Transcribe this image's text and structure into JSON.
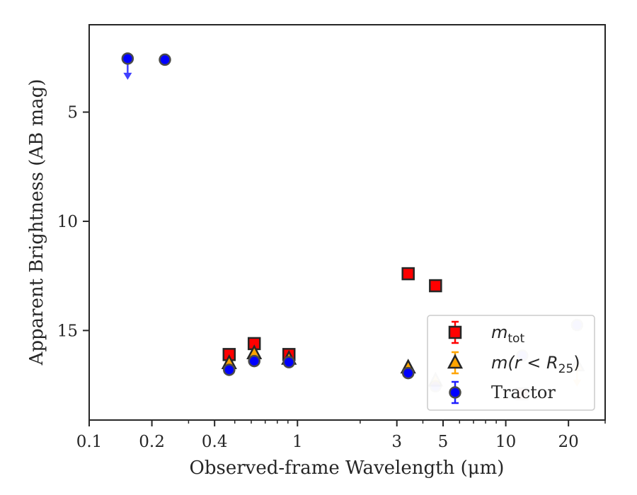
{
  "chart_data": {
    "type": "scatter",
    "title": "",
    "xlabel": "Observed-frame Wavelength (μm)",
    "ylabel": "Apparent Brightness (AB mag)",
    "x_scale": "log",
    "y_inverted": true,
    "xlim": [
      0.1,
      30
    ],
    "ylim": [
      19.1,
      1.0
    ],
    "x_ticks": [
      {
        "value": 0.1,
        "label": "0.1"
      },
      {
        "value": 0.2,
        "label": "0.2"
      },
      {
        "value": 0.4,
        "label": "0.4"
      },
      {
        "value": 1,
        "label": "1"
      },
      {
        "value": 3,
        "label": "3"
      },
      {
        "value": 5,
        "label": "5"
      },
      {
        "value": 10,
        "label": "10"
      },
      {
        "value": 20,
        "label": "20"
      }
    ],
    "y_ticks": [
      {
        "value": 5,
        "label": "5"
      },
      {
        "value": 10,
        "label": "10"
      },
      {
        "value": 15,
        "label": "15"
      }
    ],
    "grid": false,
    "legend_position": "lower-right",
    "series": [
      {
        "name": "m_tot",
        "legend_main": "m",
        "legend_sub": "tot",
        "marker": "square",
        "color": "#ff0000",
        "err_color": "#ff0000",
        "points": [
          {
            "x": 0.47,
            "y": 16.1
          },
          {
            "x": 0.62,
            "y": 15.6
          },
          {
            "x": 0.91,
            "y": 16.1
          },
          {
            "x": 3.4,
            "y": 12.4
          },
          {
            "x": 4.6,
            "y": 12.95
          },
          {
            "x": 12.0,
            "y": 17.9,
            "faded": true
          }
        ]
      },
      {
        "name": "m(r < R25)",
        "legend_main": "m(r < R",
        "legend_sub": "25",
        "legend_tail": ")",
        "marker": "triangle",
        "color": "#ffa500",
        "err_color": "#ffa500",
        "points": [
          {
            "x": 0.47,
            "y": 16.5
          },
          {
            "x": 0.62,
            "y": 16.05
          },
          {
            "x": 0.91,
            "y": 16.3
          },
          {
            "x": 3.4,
            "y": 16.7
          },
          {
            "x": 4.6,
            "y": 17.3,
            "faded": true
          },
          {
            "x": 22.0,
            "y": 16.6,
            "faded": true,
            "upper_limit": true
          }
        ]
      },
      {
        "name": "Tractor",
        "legend_main": "Tractor",
        "marker": "circle",
        "color": "#0000ff",
        "err_color": "#1f1fff",
        "points": [
          {
            "x": 0.153,
            "y": 2.55,
            "upper_limit": true
          },
          {
            "x": 0.231,
            "y": 2.6
          },
          {
            "x": 0.47,
            "y": 16.8
          },
          {
            "x": 0.62,
            "y": 16.4
          },
          {
            "x": 0.91,
            "y": 16.45
          },
          {
            "x": 3.4,
            "y": 16.95
          },
          {
            "x": 4.6,
            "y": 17.55,
            "faded": true
          },
          {
            "x": 12.0,
            "y": 16.15,
            "faded": true
          },
          {
            "x": 22.0,
            "y": 14.75,
            "faded": true
          }
        ]
      }
    ]
  }
}
